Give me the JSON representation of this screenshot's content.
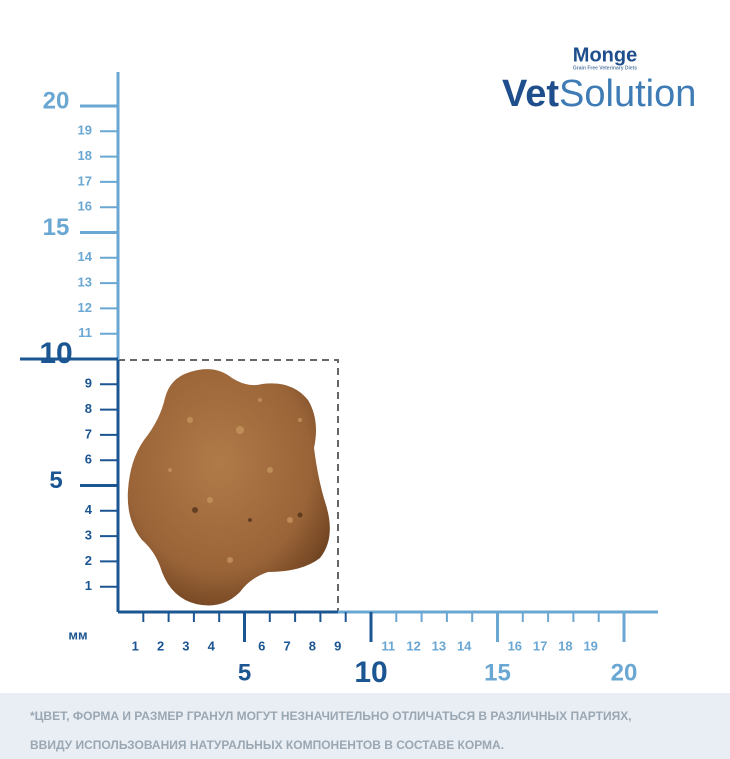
{
  "brand": {
    "maker": "Monge",
    "tagline": "Grain Free Veterinary Diets",
    "name_bold": "Vet",
    "name_light": "Solution"
  },
  "ruler": {
    "unit": "мм",
    "minor_labels": [
      1,
      2,
      3,
      4,
      6,
      7,
      8,
      9,
      11,
      12,
      13,
      14,
      16,
      17,
      18,
      19
    ],
    "major_labels": [
      5,
      10,
      15,
      20
    ]
  },
  "disclaimer": [
    "*ЦВЕТ, ФОРМА И РАЗМЕР ГРАНУЛ МОГУТ НЕЗНАЧИТЕЛЬНО ОТЛИЧАТЬСЯ В РАЗЛИЧНЫХ ПАРТИЯХ,",
    "ВВИДУ ИСПОЛЬЗОВАНИЯ НАТУРАЛЬНЫХ КОМПОНЕНТОВ В СОСТАВЕ КОРМА."
  ]
}
